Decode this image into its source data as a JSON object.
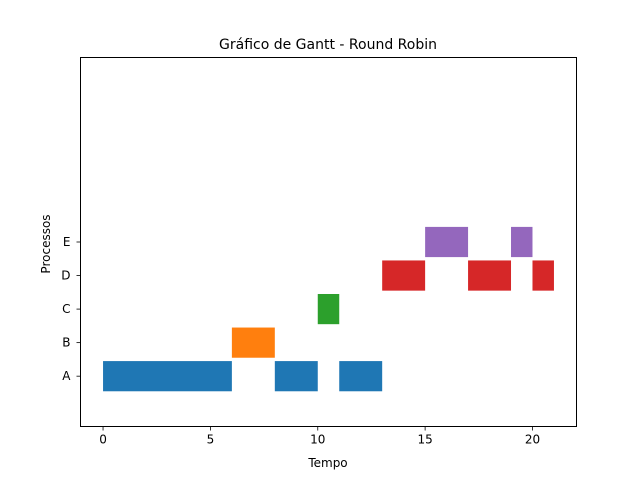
{
  "chart_data": {
    "type": "gantt",
    "title": "Gráfico de Gantt - Round Robin",
    "xlabel": "Tempo",
    "ylabel": "Processos",
    "xlim": [
      -1.05,
      22.05
    ],
    "ylim": [
      -1.5,
      9.5
    ],
    "x_ticks": [
      0,
      5,
      10,
      15,
      20
    ],
    "y_categories": [
      "A",
      "B",
      "C",
      "D",
      "E"
    ],
    "grid": false,
    "bar_height": 0.9,
    "series": [
      {
        "name": "A",
        "color": "#1f77b4",
        "segments": [
          [
            0,
            6
          ],
          [
            8,
            10
          ],
          [
            11,
            13
          ]
        ]
      },
      {
        "name": "B",
        "color": "#ff7f0e",
        "segments": [
          [
            6,
            8
          ]
        ]
      },
      {
        "name": "C",
        "color": "#2ca02c",
        "segments": [
          [
            10,
            11
          ]
        ]
      },
      {
        "name": "D",
        "color": "#d62728",
        "segments": [
          [
            13,
            15
          ],
          [
            17,
            19
          ],
          [
            20,
            21
          ]
        ]
      },
      {
        "name": "E",
        "color": "#9467bd",
        "segments": [
          [
            15,
            17
          ],
          [
            19,
            20
          ]
        ]
      }
    ]
  }
}
